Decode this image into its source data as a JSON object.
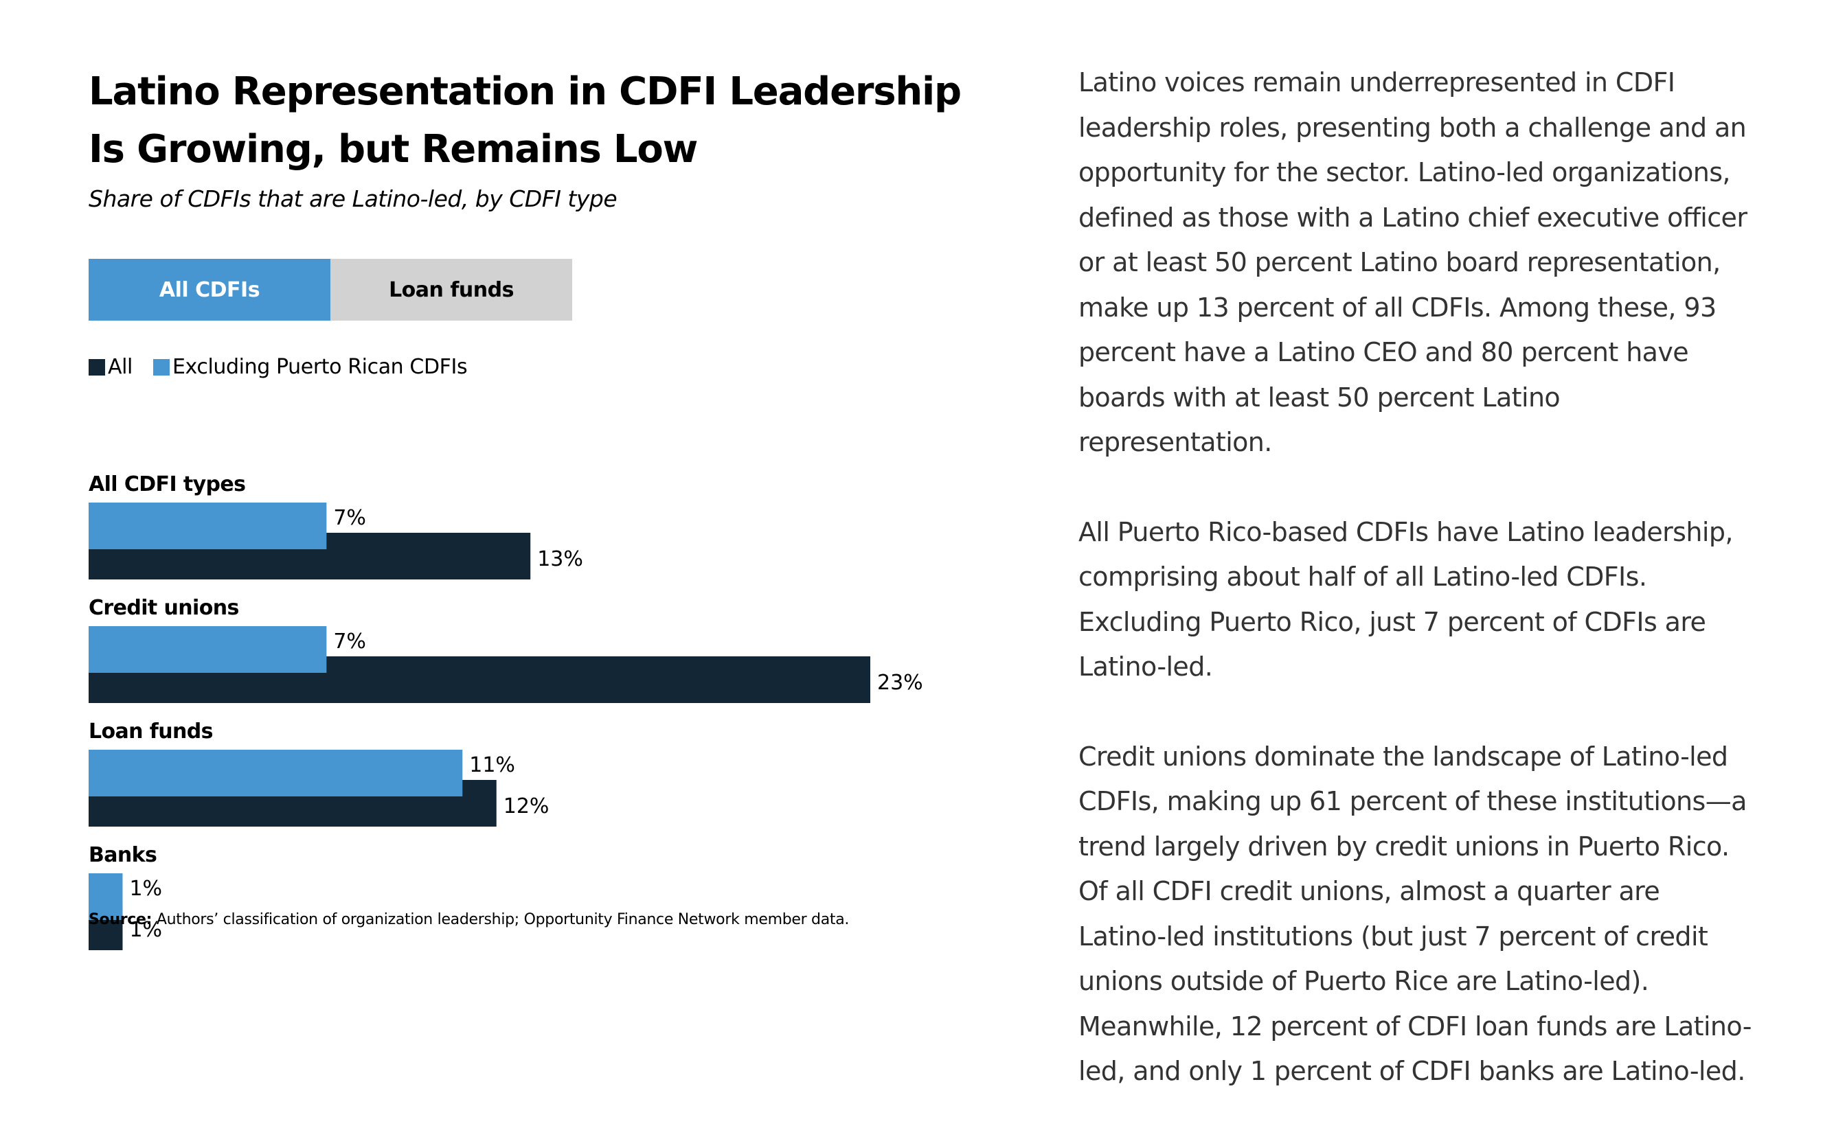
{
  "chart_data": {
    "type": "bar",
    "orientation": "horizontal",
    "title": "Latino Representation in CDFI Leadership Is Growing, but Remains Low",
    "subtitle": "Share of CDFIs that are Latino-led, by CDFI type",
    "categories": [
      "All CDFI types",
      "Credit unions",
      "Loan funds",
      "Banks"
    ],
    "series": [
      {
        "name": "Excluding Puerto Rican CDFIs",
        "color": "#4796d1",
        "values": [
          7,
          7,
          11,
          1
        ],
        "labels": [
          "7%",
          "7%",
          "11%",
          "1%"
        ]
      },
      {
        "name": "All",
        "color": "#122635",
        "values": [
          13,
          23,
          12,
          1
        ],
        "labels": [
          "13%",
          "23%",
          "12%",
          "1%"
        ]
      }
    ],
    "xlim": [
      0,
      23
    ],
    "grid": false,
    "legend_position": "top-left",
    "source_label": "Source:",
    "source_text": "Authors’ classification of organization leadership; Opportunity Finance Network member data."
  },
  "tabs": [
    {
      "label": "All CDFIs",
      "active": true
    },
    {
      "label": "Loan funds",
      "active": false
    }
  ],
  "legend": [
    {
      "label": "All",
      "color": "#122635"
    },
    {
      "label": "Excluding Puerto Rican CDFIs",
      "color": "#4796d1"
    }
  ],
  "article": {
    "paragraphs": [
      "Latino voices remain underrepresented in CDFI leadership roles, presenting both a challenge and an opportunity for the sector. Latino-led organizations, defined as those with a Latino chief executive officer or at least 50 percent Latino board representation, make up 13 percent of all CDFIs. Among these, 93 percent have a Latino CEO and 80 percent have boards with at least 50 percent Latino representation.",
      "All Puerto Rico-based CDFIs have Latino leadership, comprising about half of all Latino-led CDFIs. Excluding Puerto Rico, just 7 percent of CDFIs are Latino-led.",
      "Credit unions dominate the landscape of Latino-led CDFIs, making up 61 percent of these institutions—a trend largely driven by credit unions in Puerto Rico. Of all CDFI credit unions, almost a quarter are Latino-led institutions (but just 7 percent of credit unions outside of Puerto Rice are Latino-led). Meanwhile, 12 percent of CDFI loan funds are Latino-led, and only 1 percent of CDFI banks are Latino-led."
    ]
  }
}
